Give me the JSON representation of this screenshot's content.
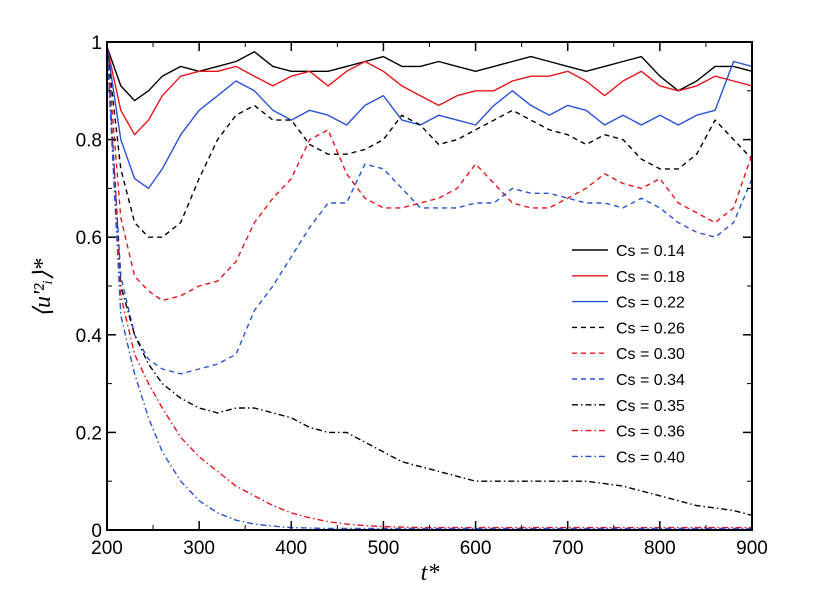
{
  "chart_data": {
    "type": "line",
    "title": "",
    "xlabel": "t*",
    "ylabel": "⟨u'²ᵢ⟩*",
    "xlim": [
      200,
      900
    ],
    "ylim": [
      0,
      1
    ],
    "xticks": [
      200,
      300,
      400,
      500,
      600,
      700,
      800,
      900
    ],
    "yticks": [
      0,
      0.2,
      0.4,
      0.6,
      0.8,
      1
    ],
    "ytick_labels": [
      "0",
      "0.2",
      "0.4",
      "0.6",
      "0.8",
      "1"
    ],
    "legend_position": "center-right",
    "grid": false,
    "series": [
      {
        "name": "Cs = 0.14",
        "color": "#000000",
        "dash": "solid",
        "x": [
          200,
          215,
          230,
          245,
          260,
          280,
          300,
          320,
          340,
          360,
          380,
          400,
          420,
          440,
          460,
          480,
          500,
          520,
          540,
          560,
          580,
          600,
          620,
          640,
          660,
          680,
          700,
          720,
          740,
          760,
          780,
          800,
          820,
          840,
          860,
          880,
          900
        ],
        "y": [
          0.99,
          0.91,
          0.88,
          0.9,
          0.93,
          0.95,
          0.94,
          0.95,
          0.96,
          0.98,
          0.95,
          0.94,
          0.94,
          0.94,
          0.95,
          0.96,
          0.97,
          0.95,
          0.95,
          0.96,
          0.95,
          0.94,
          0.95,
          0.96,
          0.97,
          0.96,
          0.95,
          0.94,
          0.95,
          0.96,
          0.97,
          0.93,
          0.9,
          0.92,
          0.95,
          0.95,
          0.94
        ]
      },
      {
        "name": "Cs = 0.18",
        "color": "#e8151b",
        "dash": "solid",
        "x": [
          200,
          215,
          230,
          245,
          260,
          280,
          300,
          320,
          340,
          360,
          380,
          400,
          420,
          440,
          460,
          480,
          500,
          520,
          540,
          560,
          580,
          600,
          620,
          640,
          660,
          680,
          700,
          720,
          740,
          760,
          780,
          800,
          820,
          840,
          860,
          880,
          900
        ],
        "y": [
          0.99,
          0.86,
          0.81,
          0.84,
          0.89,
          0.93,
          0.94,
          0.94,
          0.95,
          0.93,
          0.91,
          0.93,
          0.94,
          0.91,
          0.94,
          0.96,
          0.94,
          0.91,
          0.89,
          0.87,
          0.89,
          0.9,
          0.9,
          0.92,
          0.93,
          0.93,
          0.94,
          0.92,
          0.89,
          0.92,
          0.94,
          0.91,
          0.9,
          0.91,
          0.93,
          0.92,
          0.91
        ]
      },
      {
        "name": "Cs = 0.22",
        "color": "#2a52d6",
        "dash": "solid",
        "x": [
          200,
          215,
          230,
          245,
          260,
          280,
          300,
          320,
          340,
          360,
          380,
          400,
          420,
          440,
          460,
          480,
          500,
          520,
          540,
          560,
          580,
          600,
          620,
          640,
          660,
          680,
          700,
          720,
          740,
          760,
          780,
          800,
          820,
          840,
          860,
          880,
          900
        ],
        "y": [
          0.99,
          0.8,
          0.72,
          0.7,
          0.74,
          0.81,
          0.86,
          0.89,
          0.92,
          0.9,
          0.86,
          0.84,
          0.86,
          0.85,
          0.83,
          0.87,
          0.89,
          0.84,
          0.83,
          0.85,
          0.84,
          0.83,
          0.87,
          0.9,
          0.87,
          0.85,
          0.87,
          0.86,
          0.83,
          0.85,
          0.83,
          0.85,
          0.83,
          0.85,
          0.86,
          0.96,
          0.95
        ]
      },
      {
        "name": "Cs = 0.26",
        "color": "#000000",
        "dash": "5,4",
        "x": [
          200,
          215,
          230,
          245,
          260,
          280,
          300,
          320,
          340,
          360,
          380,
          400,
          420,
          440,
          460,
          480,
          500,
          520,
          540,
          560,
          580,
          600,
          620,
          640,
          660,
          680,
          700,
          720,
          740,
          760,
          780,
          800,
          820,
          840,
          860,
          880,
          900
        ],
        "y": [
          0.99,
          0.74,
          0.63,
          0.6,
          0.6,
          0.63,
          0.72,
          0.8,
          0.85,
          0.87,
          0.84,
          0.84,
          0.79,
          0.77,
          0.77,
          0.78,
          0.8,
          0.85,
          0.83,
          0.79,
          0.8,
          0.82,
          0.84,
          0.86,
          0.84,
          0.82,
          0.81,
          0.79,
          0.81,
          0.8,
          0.76,
          0.74,
          0.74,
          0.77,
          0.84,
          0.8,
          0.76
        ]
      },
      {
        "name": "Cs = 0.30",
        "color": "#e8151b",
        "dash": "5,4",
        "x": [
          200,
          215,
          230,
          245,
          260,
          280,
          300,
          320,
          340,
          360,
          380,
          400,
          420,
          440,
          460,
          480,
          500,
          520,
          540,
          560,
          580,
          600,
          620,
          640,
          660,
          680,
          700,
          720,
          740,
          760,
          780,
          800,
          820,
          840,
          860,
          880,
          900
        ],
        "y": [
          0.99,
          0.64,
          0.52,
          0.49,
          0.47,
          0.48,
          0.5,
          0.51,
          0.55,
          0.63,
          0.68,
          0.72,
          0.8,
          0.82,
          0.73,
          0.68,
          0.66,
          0.66,
          0.67,
          0.68,
          0.7,
          0.75,
          0.71,
          0.67,
          0.66,
          0.66,
          0.68,
          0.7,
          0.73,
          0.71,
          0.7,
          0.72,
          0.67,
          0.65,
          0.63,
          0.66,
          0.77
        ]
      },
      {
        "name": "Cs = 0.34",
        "color": "#2a52d6",
        "dash": "5,4",
        "x": [
          200,
          215,
          230,
          245,
          260,
          280,
          300,
          320,
          340,
          360,
          380,
          400,
          420,
          440,
          460,
          480,
          500,
          520,
          540,
          560,
          580,
          600,
          620,
          640,
          660,
          680,
          700,
          720,
          740,
          760,
          780,
          800,
          820,
          840,
          860,
          880,
          900
        ],
        "y": [
          0.99,
          0.52,
          0.4,
          0.35,
          0.33,
          0.32,
          0.33,
          0.34,
          0.36,
          0.45,
          0.5,
          0.56,
          0.62,
          0.67,
          0.67,
          0.75,
          0.74,
          0.7,
          0.66,
          0.66,
          0.66,
          0.67,
          0.67,
          0.7,
          0.69,
          0.69,
          0.68,
          0.67,
          0.67,
          0.66,
          0.68,
          0.66,
          0.63,
          0.61,
          0.6,
          0.63,
          0.72
        ]
      },
      {
        "name": "Cs = 0.35",
        "color": "#000000",
        "dash": "6,3,1.5,3",
        "x": [
          200,
          215,
          230,
          245,
          260,
          280,
          300,
          320,
          340,
          360,
          380,
          400,
          420,
          440,
          460,
          480,
          500,
          520,
          540,
          560,
          580,
          600,
          620,
          640,
          660,
          680,
          700,
          720,
          740,
          760,
          780,
          800,
          820,
          840,
          860,
          880,
          900
        ],
        "y": [
          0.99,
          0.5,
          0.4,
          0.34,
          0.3,
          0.27,
          0.25,
          0.24,
          0.25,
          0.25,
          0.24,
          0.23,
          0.21,
          0.2,
          0.2,
          0.18,
          0.16,
          0.14,
          0.13,
          0.12,
          0.11,
          0.1,
          0.1,
          0.1,
          0.1,
          0.1,
          0.1,
          0.1,
          0.095,
          0.09,
          0.08,
          0.07,
          0.06,
          0.05,
          0.045,
          0.04,
          0.03
        ]
      },
      {
        "name": "Cs = 0.36",
        "color": "#e8151b",
        "dash": "6,3,1.5,3",
        "x": [
          200,
          215,
          230,
          245,
          260,
          280,
          300,
          320,
          340,
          360,
          380,
          400,
          420,
          440,
          460,
          480,
          500,
          520,
          540,
          560,
          580,
          600,
          620,
          640,
          660,
          680,
          700,
          720,
          740,
          760,
          780,
          800,
          820,
          840,
          860,
          880,
          900
        ],
        "y": [
          0.99,
          0.48,
          0.36,
          0.3,
          0.25,
          0.19,
          0.15,
          0.12,
          0.09,
          0.07,
          0.05,
          0.035,
          0.025,
          0.017,
          0.012,
          0.009,
          0.007,
          0.006,
          0.005,
          0.005,
          0.005,
          0.005,
          0.005,
          0.005,
          0.005,
          0.005,
          0.005,
          0.005,
          0.005,
          0.005,
          0.005,
          0.005,
          0.005,
          0.005,
          0.005,
          0.005,
          0.005
        ]
      },
      {
        "name": "Cs = 0.40",
        "color": "#2a52d6",
        "dash": "6,3,1.5,3",
        "x": [
          200,
          215,
          230,
          245,
          260,
          280,
          300,
          320,
          340,
          360,
          380,
          400,
          420,
          440,
          460,
          480,
          500,
          520,
          540,
          560,
          580,
          600,
          620,
          640,
          660,
          680,
          700,
          720,
          740,
          760,
          780,
          800,
          820,
          840,
          860,
          880,
          900
        ],
        "y": [
          0.99,
          0.44,
          0.32,
          0.23,
          0.16,
          0.1,
          0.06,
          0.035,
          0.02,
          0.012,
          0.008,
          0.005,
          0.004,
          0.003,
          0.003,
          0.003,
          0.003,
          0.003,
          0.003,
          0.003,
          0.003,
          0.003,
          0.003,
          0.003,
          0.003,
          0.003,
          0.003,
          0.003,
          0.003,
          0.003,
          0.003,
          0.003,
          0.003,
          0.003,
          0.003,
          0.003,
          0.003
        ]
      }
    ]
  }
}
